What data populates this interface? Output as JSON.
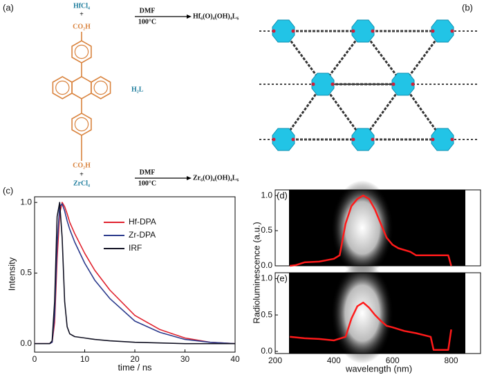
{
  "scheme": {
    "label": "(a)",
    "metal_1": "HfCl₄",
    "plus_1": "+",
    "acid_1": "CO₂H",
    "cond_1a": "DMF",
    "cond_1b": "100°C",
    "product_1": "Hf₆(O)₄(OH)₄L₆",
    "ligand": "H₂L",
    "acid_2": "CO₂H",
    "plus_2": "+",
    "metal_2": "ZrCl₄",
    "cond_2a": "DMF",
    "cond_2b": "100°C",
    "product_2": "Zr₆(O)₄(OH)₄L₆"
  },
  "structure": {
    "label": "(b)"
  },
  "chart_data": [
    {
      "type": "line",
      "panel_label": "(c)",
      "xlabel": "time / ns",
      "ylabel": "Intensity",
      "x": [
        0,
        3,
        3.5,
        4,
        4.5,
        5,
        5.5,
        6,
        6.5,
        7,
        8,
        10,
        12,
        15,
        20,
        25,
        30,
        35,
        40
      ],
      "series": [
        {
          "name": "Hf-DPA",
          "color": "#e0202c",
          "values": [
            0,
            0,
            0.01,
            0.15,
            0.6,
            0.92,
            1.0,
            0.97,
            0.92,
            0.86,
            0.78,
            0.64,
            0.52,
            0.38,
            0.2,
            0.1,
            0.04,
            0.01,
            0
          ]
        },
        {
          "name": "Zr-DPA",
          "color": "#2b3a8c",
          "values": [
            0,
            0,
            0.01,
            0.2,
            0.7,
            0.97,
            0.99,
            0.94,
            0.87,
            0.81,
            0.72,
            0.57,
            0.45,
            0.32,
            0.16,
            0.08,
            0.03,
            0.01,
            0
          ]
        },
        {
          "name": "IRF",
          "color": "#111122",
          "values": [
            0,
            0,
            0.02,
            0.3,
            0.9,
            1.0,
            0.75,
            0.3,
            0.12,
            0.07,
            0.05,
            0.04,
            0.03,
            0.02,
            0.01,
            0.005,
            0,
            0,
            0
          ]
        }
      ],
      "xlim": [
        0,
        40
      ],
      "xticks": [
        0,
        10,
        20,
        30,
        40
      ],
      "ylim": [
        -0.06,
        1.04
      ],
      "yticks": [
        {
          "value": 0,
          "label": "0.0"
        },
        {
          "value": 0.5,
          "label": "0.5"
        },
        {
          "value": 1,
          "label": "1.0"
        }
      ]
    },
    {
      "type": "line",
      "panel_label": "(d)",
      "ylabel": "Radioluminescence (a.u.)",
      "color": "#ff1a1a",
      "x": [
        250,
        270,
        300,
        350,
        400,
        420,
        440,
        460,
        480,
        500,
        520,
        540,
        560,
        580,
        600,
        620,
        660,
        680,
        740,
        790,
        800
      ],
      "values": [
        0.0,
        0.01,
        0.05,
        0.06,
        0.1,
        0.15,
        0.6,
        0.85,
        0.95,
        1.0,
        0.95,
        0.8,
        0.6,
        0.4,
        0.3,
        0.25,
        0.2,
        0.15,
        0.15,
        0.15,
        0.0
      ],
      "xlim": [
        200,
        900
      ],
      "ylim": [
        0,
        1.08
      ],
      "yticks": [
        {
          "value": 0,
          "label": "0.0"
        },
        {
          "value": 0.5,
          "label": "0.5"
        },
        {
          "value": 1,
          "label": "1.0"
        }
      ]
    },
    {
      "type": "line",
      "panel_label": "(e)",
      "xlabel": "wavelength (nm)",
      "color": "#ff1a1a",
      "x": [
        250,
        300,
        350,
        400,
        440,
        460,
        480,
        500,
        520,
        540,
        560,
        580,
        600,
        640,
        680,
        730,
        740,
        790,
        800
      ],
      "values": [
        0.2,
        0.18,
        0.17,
        0.15,
        0.2,
        0.45,
        0.62,
        0.67,
        0.6,
        0.5,
        0.42,
        0.35,
        0.33,
        0.28,
        0.25,
        0.2,
        0.02,
        0.02,
        0.3
      ],
      "xlim": [
        200,
        900
      ],
      "xticks": [
        200,
        400,
        600,
        800
      ],
      "ylim": [
        -0.03,
        1.08
      ],
      "yticks": [
        {
          "value": 0,
          "label": "0.0"
        },
        {
          "value": 0.5,
          "label": "0.5"
        },
        {
          "value": 1,
          "label": "1.0"
        }
      ]
    }
  ]
}
